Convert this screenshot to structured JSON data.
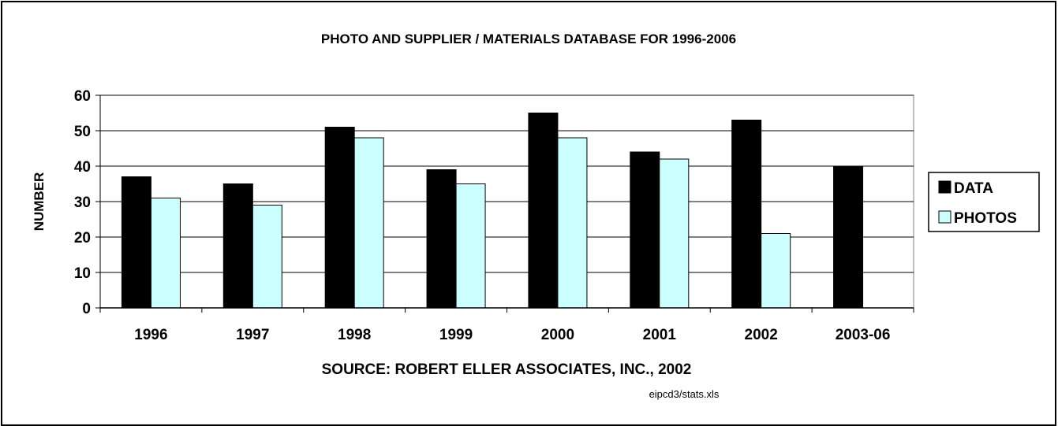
{
  "chart_data": {
    "type": "bar",
    "title": "PHOTO AND SUPPLIER / MATERIALS DATABASE FOR 1996-2006",
    "xlabel": "SOURCE: ROBERT ELLER ASSOCIATES, INC., 2002",
    "ylabel": "NUMBER",
    "footnote": "eipcd3/stats.xls",
    "categories": [
      "1996",
      "1997",
      "1998",
      "1999",
      "2000",
      "2001",
      "2002",
      "2003-06"
    ],
    "ylim": [
      0,
      60
    ],
    "yticks": [
      0,
      10,
      20,
      30,
      40,
      50,
      60
    ],
    "grid": true,
    "legend_position": "right",
    "series": [
      {
        "name": "DATA",
        "color": "#000000",
        "values": [
          37,
          35,
          51,
          39,
          55,
          44,
          53,
          40
        ]
      },
      {
        "name": "PHOTOS",
        "color": "#ccffff",
        "values": [
          31,
          29,
          48,
          35,
          48,
          42,
          21,
          null
        ]
      }
    ]
  }
}
